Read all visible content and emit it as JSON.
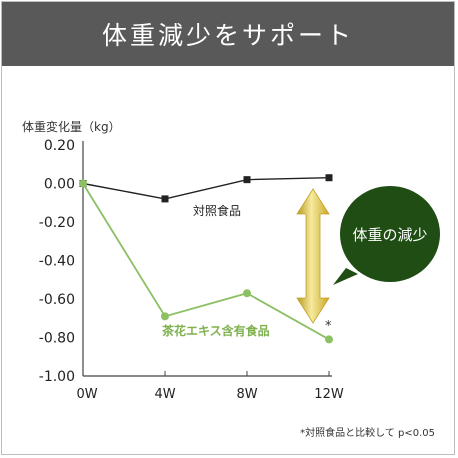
{
  "header": {
    "title": "体重減少をサポート"
  },
  "chart_data": {
    "type": "line",
    "ylabel": "体重変化量（kg）",
    "x": [
      "0W",
      "4W",
      "8W",
      "12W"
    ],
    "ylim": [
      -1.0,
      0.2
    ],
    "yticks": [
      "0.20",
      "0.00",
      "-0.20",
      "-0.40",
      "-0.60",
      "-0.80",
      "-1.00"
    ],
    "series": [
      {
        "name": "対照食品",
        "values": [
          0.0,
          -0.08,
          0.02,
          0.03
        ],
        "color": "#222222",
        "marker": "square"
      },
      {
        "name": "茶花エキス含有食品",
        "values": [
          0.0,
          -0.69,
          -0.57,
          -0.81
        ],
        "color": "#8cc063",
        "marker": "circle"
      }
    ],
    "significance_mark": "*",
    "callout": "体重の減少",
    "footnote": "*対照食品と比較して p<0.05"
  },
  "colors": {
    "header_bg": "#595959",
    "callout_bg": "#1f4d14",
    "arrow_light": "#f3e48a",
    "arrow_dark": "#b89a1c"
  }
}
